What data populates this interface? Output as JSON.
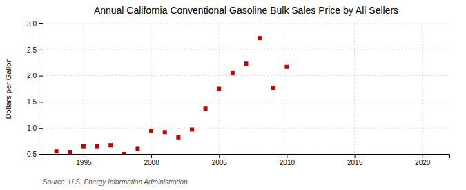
{
  "chart_data": {
    "type": "scatter",
    "title": "Annual California Conventional Gasoline Bulk Sales Price by All Sellers",
    "ylabel": "Dollars per Gallon",
    "annotations": [
      "Source: U.S. Energy Information Administration"
    ],
    "x": [
      1993,
      1994,
      1995,
      1996,
      1997,
      1998,
      1999,
      2000,
      2001,
      2002,
      2003,
      2004,
      2005,
      2006,
      2007,
      2008,
      2009,
      2010
    ],
    "values": [
      0.55,
      0.54,
      0.65,
      0.65,
      0.67,
      0.5,
      0.6,
      0.95,
      0.92,
      0.82,
      0.97,
      1.37,
      1.75,
      2.05,
      2.23,
      2.72,
      1.77,
      2.17
    ],
    "color": "#cc0000",
    "marker": "square",
    "xlim": [
      1992,
      2022
    ],
    "ylim": [
      0.5,
      3.0
    ],
    "xticks": [
      1995,
      2000,
      2005,
      2010,
      2015,
      2020
    ],
    "yticks": [
      0.5,
      {
        "value": 1,
        "label": "1.0"
      },
      1.5,
      {
        "value": 2,
        "label": "2.0"
      },
      2.5,
      {
        "value": 3,
        "label": "3.0"
      }
    ],
    "grid": true
  }
}
